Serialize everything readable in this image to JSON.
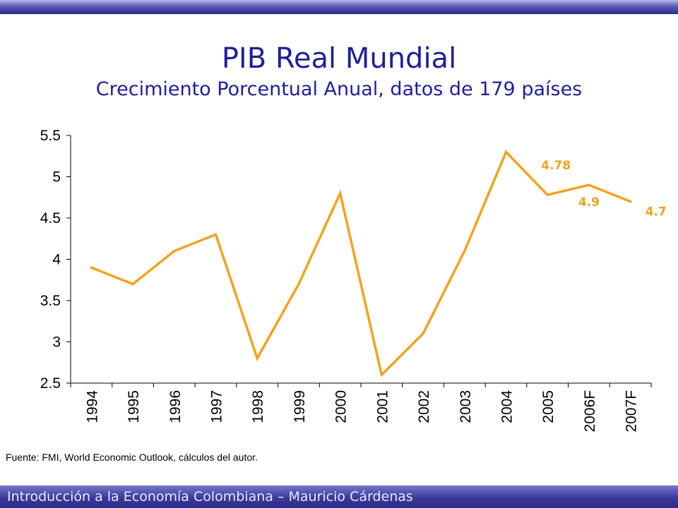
{
  "slide": {
    "title": "PIB Real Mundial",
    "subtitle": "Crecimiento Porcentual Anual, datos de 179 países",
    "source": "Fuente: FMI, World Economic Outlook, cálculos del autor.",
    "footer": "Introducción a la Economía Colombiana – Mauricio Cárdenas"
  },
  "colors": {
    "line": "#f5a21f",
    "label": "#f5a21f",
    "title": "#1f1f99",
    "bar": "#2a2a8c"
  },
  "chart_data": {
    "type": "line",
    "title": "PIB Real Mundial",
    "subtitle": "Crecimiento Porcentual Anual, datos de 179 países",
    "categories": [
      "1994",
      "1995",
      "1996",
      "1997",
      "1998",
      "1999",
      "2000",
      "2001",
      "2002",
      "2003",
      "2004",
      "2005",
      "2006F",
      "2007F"
    ],
    "series": [
      {
        "values": [
          3.9,
          3.7,
          4.1,
          4.3,
          2.8,
          3.7,
          4.8,
          2.6,
          3.1,
          4.1,
          5.3,
          4.78,
          4.9,
          4.7
        ]
      }
    ],
    "ylim": [
      2.5,
      5.5
    ],
    "yticks": [
      "2.5",
      "3",
      "3.5",
      "4",
      "4.5",
      "5",
      "5.5"
    ],
    "data_labels": [
      {
        "category": "2005",
        "text": "4.78"
      },
      {
        "category": "2006F",
        "text": "4.9"
      },
      {
        "category": "2007F",
        "text": "4.7"
      }
    ],
    "grid": false,
    "legend": "none"
  }
}
